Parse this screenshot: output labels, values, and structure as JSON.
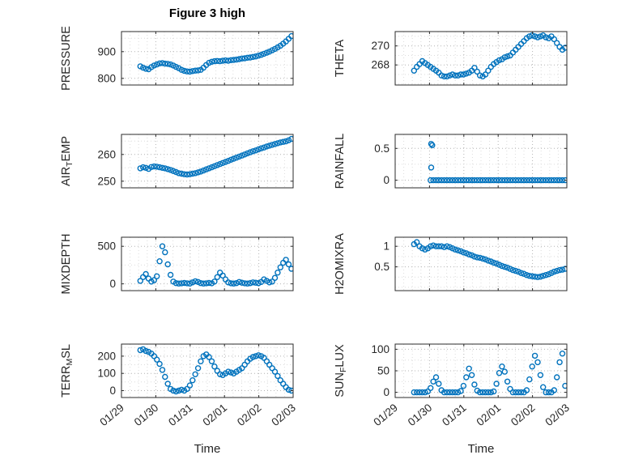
{
  "figure": {
    "title": "Figure 3 high",
    "xlabel": "Time",
    "x_tick_labels": [
      "01/29",
      "01/30",
      "01/31",
      "02/01",
      "02/02",
      "02/03"
    ],
    "xlim": [
      0,
      5
    ],
    "marker_color": "#0072BD",
    "grid_style": "dotted",
    "x_shared": [
      0.55,
      0.63,
      0.71,
      0.79,
      0.87,
      0.95,
      1.03,
      1.11,
      1.19,
      1.27,
      1.35,
      1.43,
      1.51,
      1.59,
      1.67,
      1.75,
      1.83,
      1.91,
      1.99,
      2.07,
      2.15,
      2.23,
      2.31,
      2.39,
      2.47,
      2.55,
      2.63,
      2.71,
      2.79,
      2.87,
      2.95,
      3.03,
      3.11,
      3.19,
      3.27,
      3.35,
      3.43,
      3.51,
      3.59,
      3.67,
      3.75,
      3.83,
      3.91,
      3.99,
      4.07,
      4.15,
      4.23,
      4.31,
      4.39,
      4.47,
      4.55,
      4.63,
      4.71,
      4.79,
      4.87,
      4.95
    ]
  },
  "chart_data": [
    {
      "type": "scatter",
      "name": "PRESSURE",
      "ylabel_parts": [
        {
          "text": "PRESSURE"
        }
      ],
      "yticks": [
        800,
        900
      ],
      "ylim": [
        775,
        975
      ],
      "y": [
        845,
        840,
        836,
        834,
        842,
        848,
        852,
        856,
        857,
        855,
        854,
        852,
        848,
        843,
        838,
        832,
        828,
        826,
        825,
        827,
        829,
        830,
        832,
        840,
        850,
        858,
        862,
        864,
        865,
        864,
        866,
        867,
        866,
        868,
        869,
        870,
        872,
        874,
        875,
        877,
        878,
        880,
        882,
        885,
        888,
        892,
        896,
        900,
        905,
        910,
        916,
        922,
        930,
        938,
        948,
        958
      ]
    },
    {
      "type": "scatter",
      "name": "THETA",
      "ylabel_parts": [
        {
          "text": "THETA"
        }
      ],
      "yticks": [
        268,
        270
      ],
      "ylim": [
        265.9,
        271.5
      ],
      "y": [
        267.4,
        267.8,
        268.1,
        268.4,
        268.2,
        268,
        267.8,
        267.6,
        267.4,
        267.2,
        266.9,
        266.8,
        266.8,
        266.9,
        267,
        266.9,
        266.9,
        267,
        267,
        267.1,
        267.2,
        267.4,
        267.7,
        267.3,
        266.9,
        266.8,
        267,
        267.4,
        267.8,
        268.1,
        268.3,
        268.5,
        268.6,
        268.8,
        268.9,
        269,
        269.3,
        269.6,
        269.9,
        270.2,
        270.5,
        270.8,
        271,
        271.1,
        271,
        270.9,
        271,
        271.1,
        270.9,
        270.8,
        271,
        270.7,
        270.3,
        269.9,
        269.6,
        269.8
      ]
    },
    {
      "type": "scatter",
      "name": "AIR_TEMP",
      "ylabel_parts": [
        {
          "text": "AIR"
        },
        {
          "text": "T",
          "sub": true
        },
        {
          "text": "EMP"
        }
      ],
      "yticks": [
        250,
        260
      ],
      "ylim": [
        247.5,
        267.5
      ],
      "y": [
        254.8,
        255.2,
        255,
        254.6,
        255.3,
        255.5,
        255.4,
        255.2,
        255,
        254.8,
        254.5,
        254.2,
        253.8,
        253.4,
        253,
        252.8,
        252.6,
        252.5,
        252.6,
        252.8,
        253,
        253.3,
        253.6,
        254,
        254.4,
        254.8,
        255.2,
        255.6,
        256,
        256.4,
        256.8,
        257.2,
        257.6,
        258,
        258.4,
        258.8,
        259.2,
        259.6,
        260,
        260.4,
        260.8,
        261.2,
        261.5,
        261.9,
        262.3,
        262.6,
        263,
        263.3,
        263.6,
        263.9,
        264.2,
        264.5,
        264.7,
        264.9,
        265.3,
        265.8
      ]
    },
    {
      "type": "scatter",
      "name": "RAINFALL",
      "ylabel_parts": [
        {
          "text": "RAINFALL"
        }
      ],
      "yticks": [
        0,
        0.5
      ],
      "ylim": [
        -0.12,
        0.72
      ],
      "y": [
        null,
        null,
        null,
        null,
        null,
        null,
        0,
        0,
        0,
        0,
        0,
        0,
        0,
        0,
        0,
        0,
        0,
        0,
        0,
        0,
        0,
        0,
        0,
        0,
        0,
        0,
        0,
        0,
        0,
        0,
        0,
        0,
        0,
        0,
        0,
        0,
        0,
        0,
        0,
        0,
        0,
        0,
        0,
        0,
        0,
        0,
        0,
        0,
        0,
        0,
        0,
        0,
        0,
        0,
        0,
        0
      ],
      "extra_points": [
        [
          1.05,
          0.57
        ],
        [
          1.08,
          0.55
        ],
        [
          1.05,
          0.2
        ]
      ]
    },
    {
      "type": "scatter",
      "name": "MIXDEPTH",
      "ylabel_parts": [
        {
          "text": "MIXDEPTH"
        }
      ],
      "yticks": [
        0,
        500
      ],
      "ylim": [
        -90,
        620
      ],
      "y": [
        40,
        90,
        130,
        70,
        30,
        50,
        100,
        300,
        500,
        420,
        260,
        120,
        30,
        10,
        5,
        8,
        12,
        8,
        5,
        20,
        35,
        25,
        10,
        5,
        8,
        12,
        8,
        30,
        90,
        150,
        110,
        60,
        20,
        8,
        5,
        10,
        25,
        15,
        8,
        5,
        10,
        20,
        15,
        10,
        25,
        60,
        40,
        20,
        30,
        80,
        150,
        220,
        280,
        320,
        260,
        200
      ]
    },
    {
      "type": "scatter",
      "name": "H2OMIXRA",
      "ylabel_parts": [
        {
          "text": "H2OMIXRA"
        }
      ],
      "yticks": [
        0.5,
        1
      ],
      "ylim": [
        -0.08,
        1.22
      ],
      "y": [
        1.05,
        1.1,
        1,
        0.95,
        0.92,
        0.95,
        1,
        1.02,
        1,
        1,
        1,
        0.98,
        1,
        0.98,
        0.95,
        0.92,
        0.9,
        0.88,
        0.85,
        0.83,
        0.8,
        0.78,
        0.75,
        0.73,
        0.72,
        0.7,
        0.68,
        0.65,
        0.63,
        0.6,
        0.58,
        0.55,
        0.52,
        0.5,
        0.48,
        0.45,
        0.42,
        0.4,
        0.38,
        0.35,
        0.33,
        0.3,
        0.28,
        0.27,
        0.26,
        0.25,
        0.26,
        0.28,
        0.3,
        0.32,
        0.35,
        0.38,
        0.4,
        0.42,
        0.43,
        0.45
      ]
    },
    {
      "type": "scatter",
      "name": "TERR_MSL",
      "ylabel_parts": [
        {
          "text": "TERR"
        },
        {
          "text": "M",
          "sub": true
        },
        {
          "text": "SL"
        }
      ],
      "yticks": [
        0,
        100,
        200
      ],
      "ylim": [
        -40,
        270
      ],
      "y": [
        235,
        240,
        230,
        225,
        215,
        200,
        180,
        155,
        120,
        80,
        40,
        10,
        0,
        -5,
        0,
        5,
        0,
        10,
        30,
        60,
        95,
        130,
        170,
        200,
        210,
        195,
        170,
        140,
        115,
        95,
        90,
        100,
        110,
        105,
        100,
        110,
        120,
        130,
        150,
        170,
        185,
        195,
        200,
        205,
        200,
        190,
        170,
        150,
        130,
        110,
        85,
        60,
        40,
        20,
        5,
        0
      ]
    },
    {
      "type": "scatter",
      "name": "SUN_FLUX",
      "ylabel_parts": [
        {
          "text": "SUN"
        },
        {
          "text": "F",
          "sub": true
        },
        {
          "text": "LUX"
        }
      ],
      "yticks": [
        0,
        50,
        100
      ],
      "ylim": [
        -12,
        112
      ],
      "y": [
        0,
        0,
        0,
        0,
        0,
        2,
        10,
        25,
        35,
        20,
        5,
        0,
        0,
        0,
        0,
        0,
        0,
        3,
        15,
        35,
        55,
        40,
        18,
        4,
        0,
        0,
        0,
        0,
        0,
        2,
        20,
        45,
        60,
        48,
        25,
        8,
        0,
        0,
        0,
        0,
        0,
        5,
        30,
        60,
        85,
        70,
        40,
        12,
        0,
        0,
        0,
        5,
        35,
        70,
        90,
        15
      ]
    }
  ]
}
